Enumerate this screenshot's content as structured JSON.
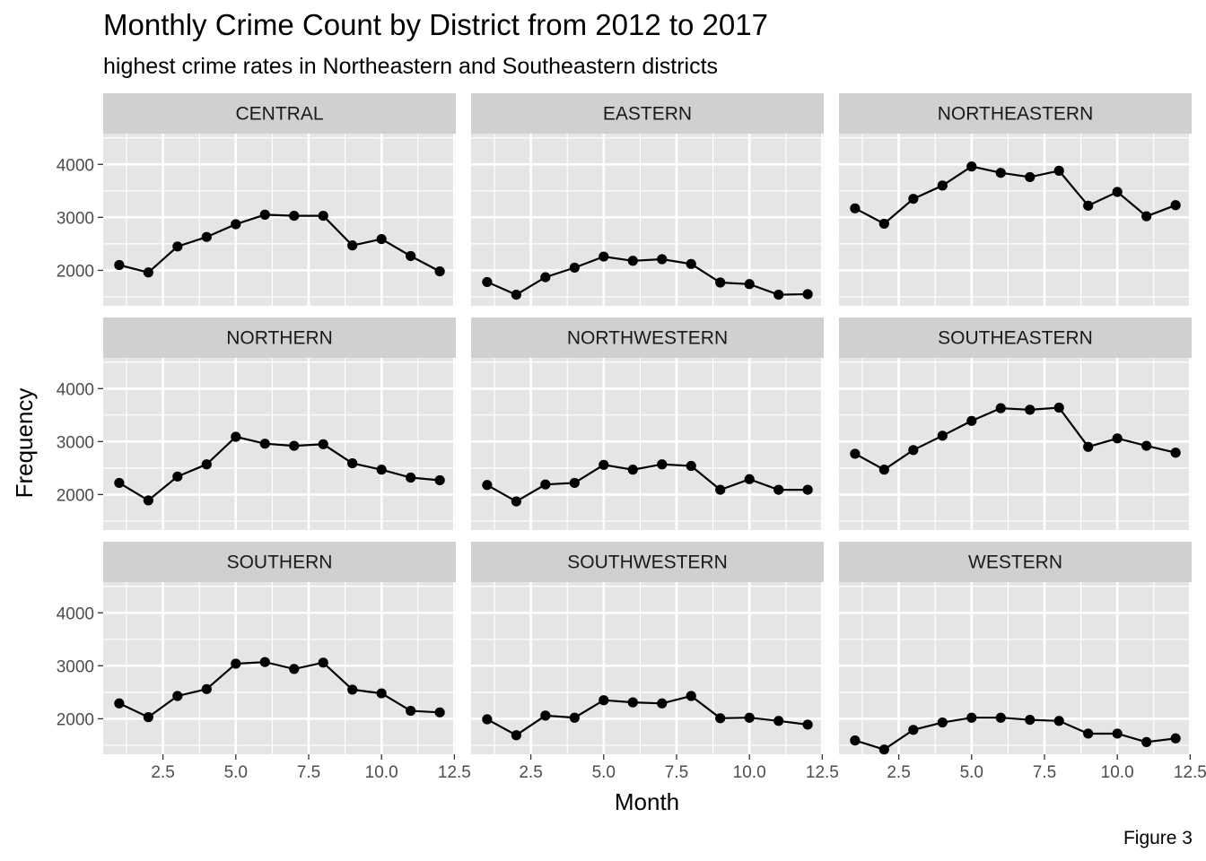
{
  "title": "Monthly Crime Count by District from 2012 to 2017",
  "subtitle": "highest crime rates in Northeastern and Southeastern districts",
  "caption": "Figure 3",
  "colors": {
    "panel_bg": "#e5e5e5",
    "strip_bg": "#d0d0d0",
    "grid": "#ffffff",
    "line": "#000000"
  },
  "chart_data": {
    "type": "line",
    "facet_layout": "3x3",
    "xlabel": "Month",
    "ylabel": "Frequency",
    "xlim": [
      0.45,
      12.55
    ],
    "ylim": [
      1330,
      4580
    ],
    "x_ticks": [
      2.5,
      5.0,
      7.5,
      10.0,
      12.5
    ],
    "x_tick_labels": [
      "2.5",
      "5.0",
      "7.5",
      "10.0",
      "12.5"
    ],
    "y_ticks": [
      2000,
      3000,
      4000
    ],
    "y_tick_labels": [
      "2000",
      "3000",
      "4000"
    ],
    "grid": true,
    "legend": "none",
    "x": [
      1,
      2,
      3,
      4,
      5,
      6,
      7,
      8,
      9,
      10,
      11,
      12
    ],
    "panels": [
      {
        "name": "CENTRAL",
        "values": [
          2100,
          1960,
          2450,
          2630,
          2870,
          3050,
          3030,
          3030,
          2470,
          2590,
          2270,
          1980
        ]
      },
      {
        "name": "EASTERN",
        "values": [
          1780,
          1540,
          1870,
          2050,
          2260,
          2180,
          2210,
          2120,
          1770,
          1740,
          1540,
          1550
        ]
      },
      {
        "name": "NORTHEASTERN",
        "values": [
          3170,
          2880,
          3350,
          3600,
          3960,
          3840,
          3760,
          3880,
          3220,
          3480,
          3020,
          3230
        ]
      },
      {
        "name": "NORTHERN",
        "values": [
          2220,
          1890,
          2340,
          2570,
          3090,
          2960,
          2920,
          2950,
          2590,
          2470,
          2320,
          2270
        ]
      },
      {
        "name": "NORTHWESTERN",
        "values": [
          2180,
          1870,
          2190,
          2220,
          2560,
          2470,
          2570,
          2540,
          2090,
          2290,
          2090,
          2090
        ]
      },
      {
        "name": "SOUTHEASTERN",
        "values": [
          2770,
          2470,
          2840,
          3110,
          3390,
          3630,
          3600,
          3640,
          2900,
          3060,
          2920,
          2790
        ]
      },
      {
        "name": "SOUTHERN",
        "values": [
          2290,
          2030,
          2430,
          2560,
          3040,
          3070,
          2940,
          3060,
          2550,
          2480,
          2150,
          2120
        ]
      },
      {
        "name": "SOUTHWESTERN",
        "values": [
          1990,
          1690,
          2060,
          2020,
          2350,
          2310,
          2290,
          2430,
          2010,
          2020,
          1960,
          1890
        ]
      },
      {
        "name": "WESTERN",
        "values": [
          1590,
          1420,
          1790,
          1930,
          2020,
          2020,
          1980,
          1960,
          1720,
          1720,
          1560,
          1630
        ]
      }
    ]
  }
}
